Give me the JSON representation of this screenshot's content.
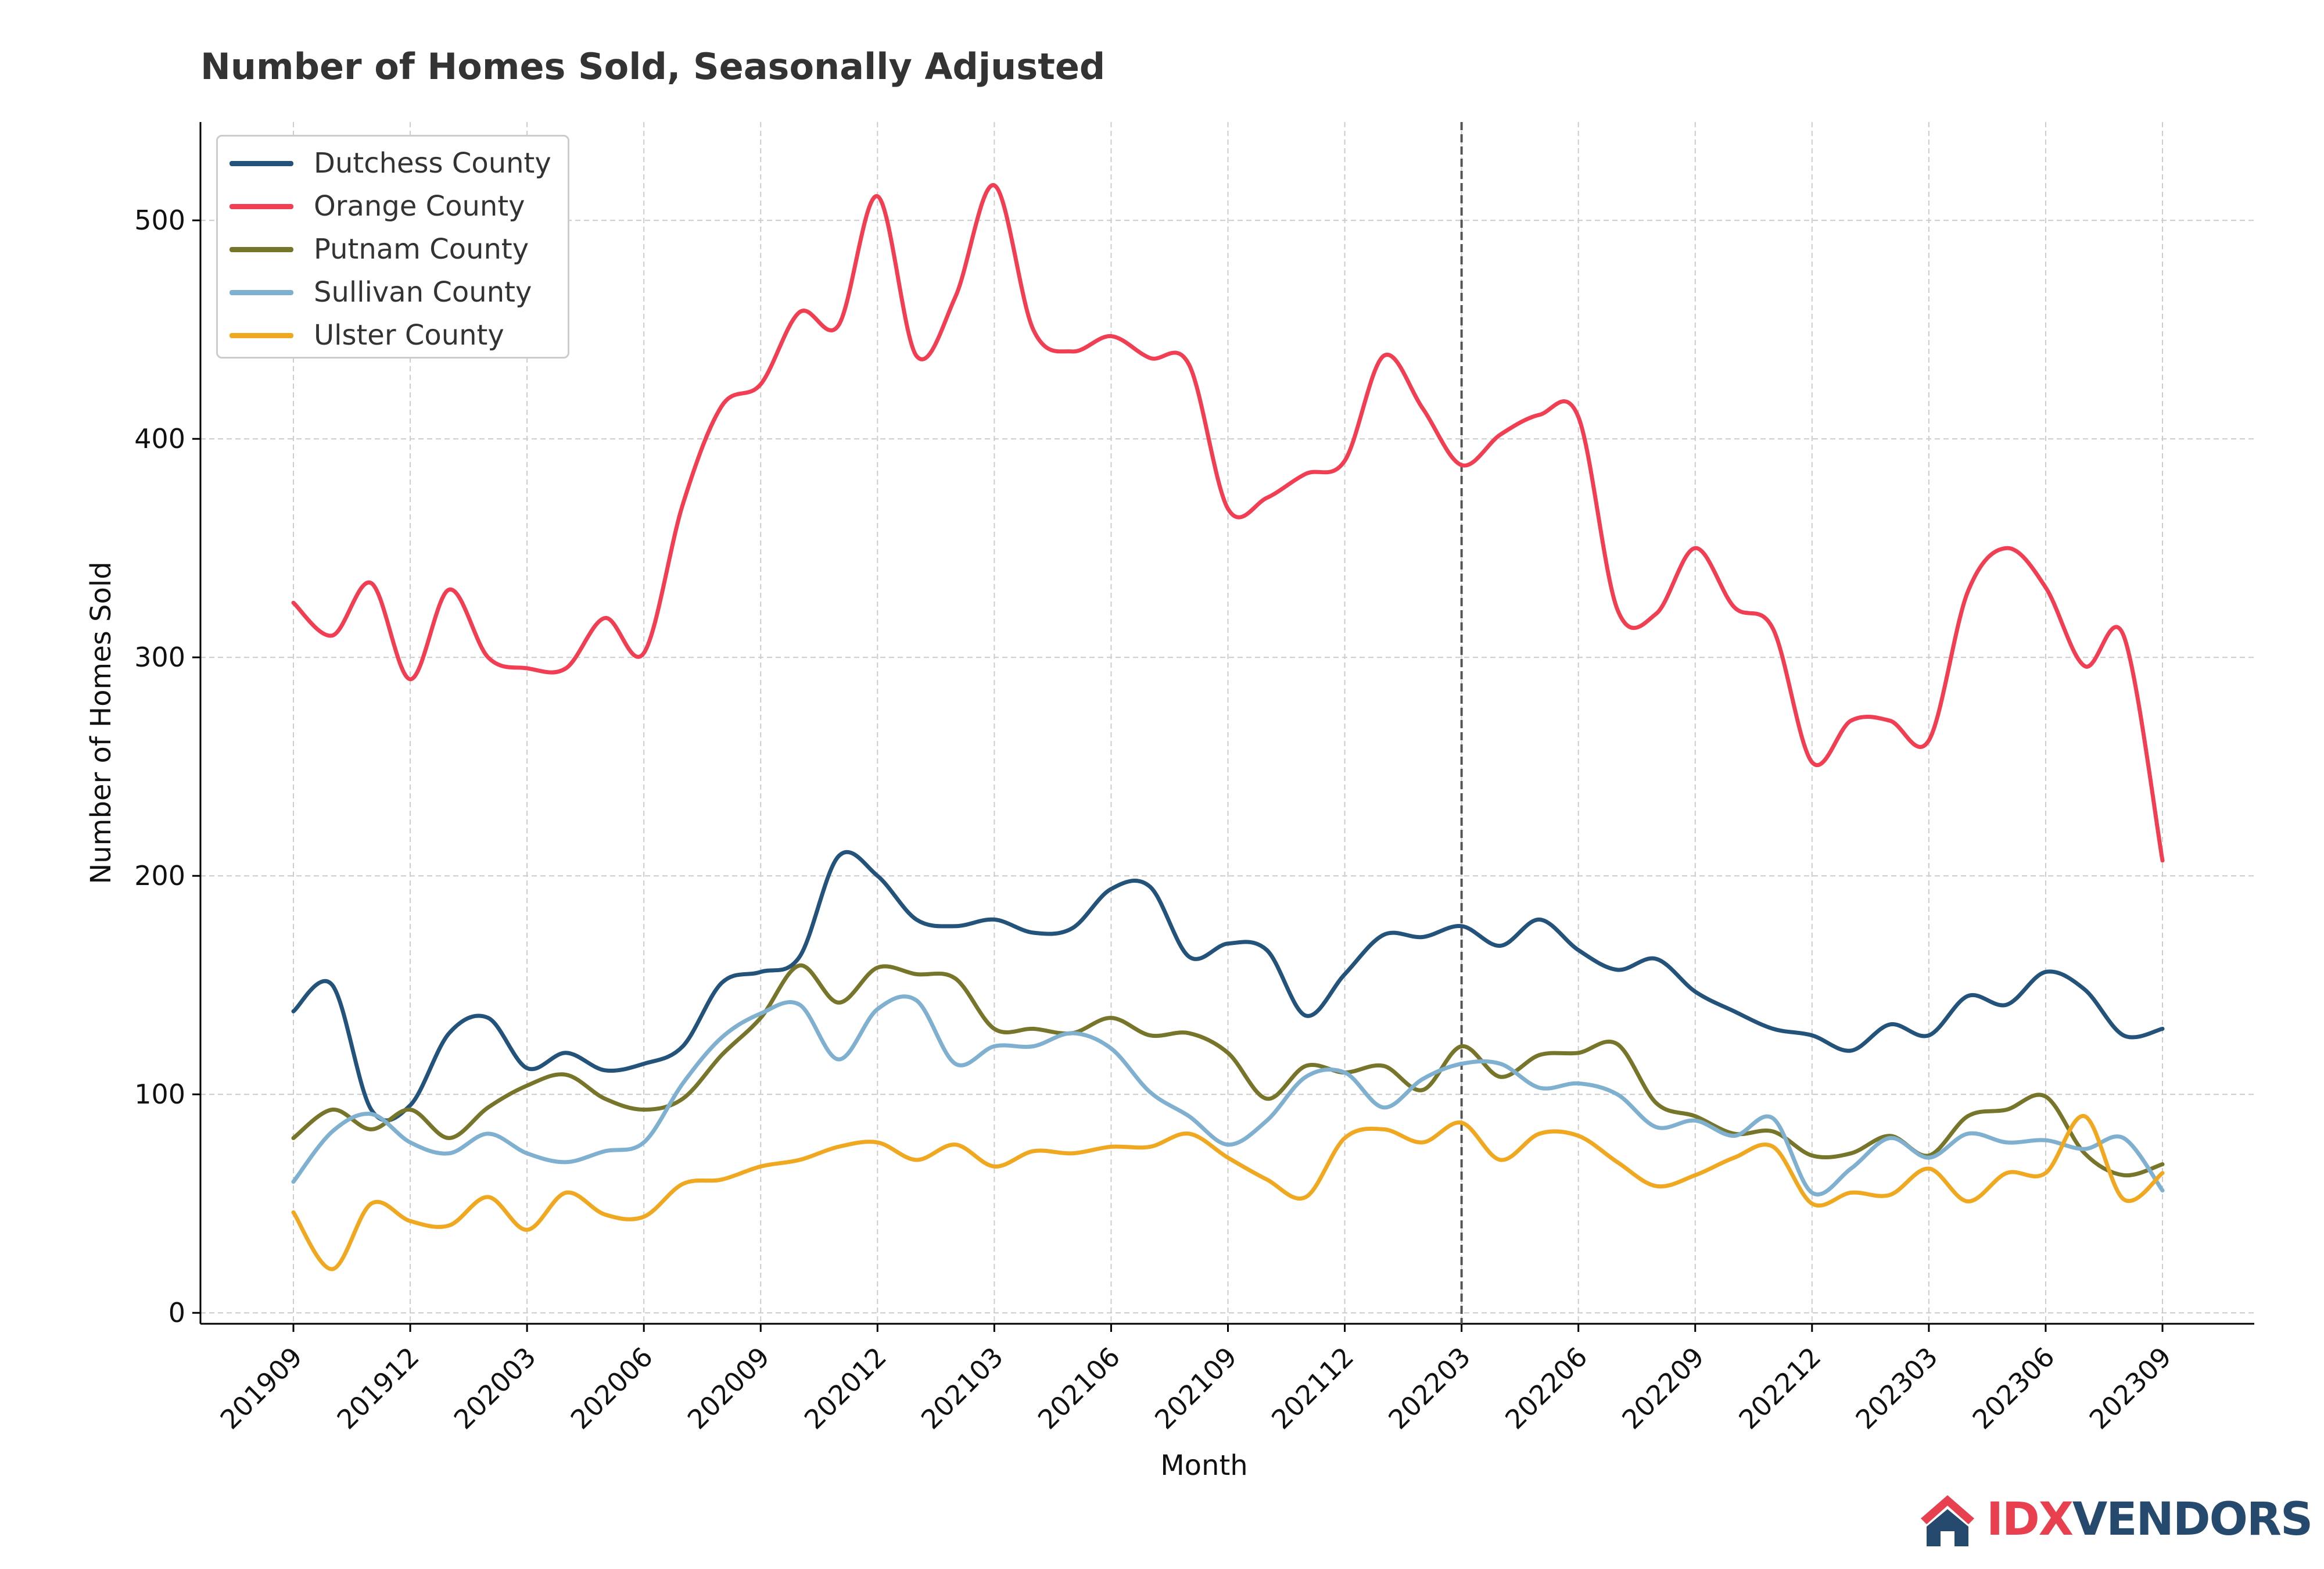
{
  "chart_data": {
    "type": "line",
    "title": "Number of Homes Sold, Seasonally Adjusted",
    "xlabel": "Month",
    "ylabel": "Number of Homes Sold",
    "ylim": [
      -5,
      545
    ],
    "yticks": [
      0,
      100,
      200,
      300,
      400,
      500
    ],
    "grid": true,
    "legend": "top-left",
    "vline": "202203",
    "xticks": [
      "201909",
      "201912",
      "202003",
      "202006",
      "202009",
      "202012",
      "202103",
      "202106",
      "202109",
      "202112",
      "202203",
      "202206",
      "202209",
      "202212",
      "202303",
      "202306",
      "202309"
    ],
    "x": [
      "201909",
      "201910",
      "201911",
      "201912",
      "202001",
      "202002",
      "202003",
      "202004",
      "202005",
      "202006",
      "202007",
      "202008",
      "202009",
      "202010",
      "202011",
      "202012",
      "202101",
      "202102",
      "202103",
      "202104",
      "202105",
      "202106",
      "202107",
      "202108",
      "202109",
      "202110",
      "202111",
      "202112",
      "202201",
      "202202",
      "202203",
      "202204",
      "202205",
      "202206",
      "202207",
      "202208",
      "202209",
      "202210",
      "202211",
      "202212",
      "202301",
      "202302",
      "202303",
      "202304",
      "202305",
      "202306",
      "202307",
      "202308",
      "202309"
    ],
    "series": [
      {
        "name": "Dutchess County",
        "color": "#23527a",
        "values": [
          138,
          150,
          93,
          95,
          128,
          135,
          112,
          119,
          111,
          114,
          122,
          151,
          156,
          163,
          209,
          200,
          180,
          177,
          180,
          174,
          176,
          194,
          195,
          163,
          169,
          166,
          136,
          155,
          173,
          172,
          177,
          168,
          180,
          166,
          157,
          162,
          147,
          138,
          130,
          127,
          120,
          132,
          127,
          145,
          141,
          156,
          148,
          127,
          130
        ]
      },
      {
        "name": "Orange County",
        "color": "#f23e52",
        "values": [
          325,
          310,
          334,
          290,
          331,
          300,
          295,
          295,
          318,
          302,
          370,
          415,
          425,
          458,
          452,
          511,
          438,
          465,
          516,
          450,
          440,
          447,
          437,
          434,
          368,
          373,
          384,
          390,
          438,
          414,
          388,
          402,
          411,
          410,
          322,
          320,
          350,
          323,
          313,
          252,
          271,
          271,
          262,
          330,
          350,
          332,
          296,
          310,
          207
        ]
      },
      {
        "name": "Putnam County",
        "color": "#76752a",
        "values": [
          80,
          93,
          84,
          93,
          80,
          94,
          104,
          109,
          98,
          93,
          98,
          118,
          135,
          159,
          142,
          158,
          155,
          153,
          130,
          130,
          128,
          135,
          127,
          128,
          119,
          98,
          113,
          110,
          113,
          102,
          122,
          108,
          118,
          119,
          123,
          96,
          90,
          82,
          83,
          72,
          73,
          81,
          72,
          90,
          93,
          99,
          73,
          63,
          68
        ]
      },
      {
        "name": "Sullivan County",
        "color": "#7fb0d0",
        "values": [
          60,
          83,
          91,
          78,
          73,
          82,
          73,
          69,
          74,
          78,
          105,
          126,
          137,
          141,
          116,
          139,
          143,
          114,
          122,
          122,
          128,
          121,
          101,
          90,
          77,
          88,
          108,
          110,
          94,
          107,
          114,
          114,
          103,
          105,
          100,
          85,
          88,
          81,
          89,
          55,
          66,
          80,
          71,
          82,
          78,
          79,
          75,
          80,
          56
        ]
      },
      {
        "name": "Ulster County",
        "color": "#efa820",
        "values": [
          46,
          20,
          50,
          42,
          40,
          53,
          38,
          55,
          45,
          44,
          59,
          61,
          67,
          70,
          76,
          78,
          70,
          77,
          67,
          74,
          73,
          76,
          76,
          82,
          71,
          61,
          53,
          80,
          84,
          78,
          87,
          70,
          82,
          81,
          69,
          58,
          63,
          71,
          76,
          50,
          55,
          54,
          66,
          51,
          64,
          64,
          90,
          52,
          64
        ]
      }
    ]
  },
  "brand": {
    "part_a": "IDX",
    "part_b": "VENDORS"
  }
}
